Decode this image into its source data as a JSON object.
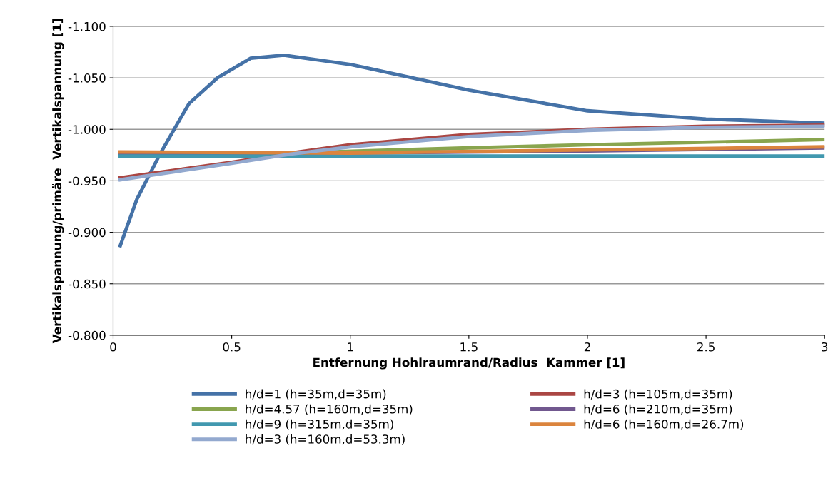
{
  "chart_data": {
    "type": "line",
    "xlabel": "Entfernung Hohlraumrand/Radius  Kammer [1]",
    "ylabel": "Vertikalspannung/primäre  Vertikalspannung [1]",
    "xlim": [
      0,
      3
    ],
    "xticks": [
      0,
      0.5,
      1,
      1.5,
      2,
      2.5,
      3
    ],
    "ylim": [
      -0.8,
      -1.1
    ],
    "yticks": [
      {
        "value": -1.1,
        "label": "-1.100"
      },
      {
        "value": -1.05,
        "label": "-1.050"
      },
      {
        "value": -1.0,
        "label": "-1.000"
      },
      {
        "value": -0.95,
        "label": "-0.950"
      },
      {
        "value": -0.9,
        "label": "-0.900"
      },
      {
        "value": -0.85,
        "label": "-0.850"
      },
      {
        "value": -0.8,
        "label": "-0.800"
      }
    ],
    "grid": "y",
    "legend": "bottom",
    "marker": "none",
    "line_style": "solid",
    "series": [
      {
        "name": "h/d=1 (h=35m,d=35m)",
        "color": "#4572a7",
        "x": [
          0.03,
          0.1,
          0.2,
          0.32,
          0.44,
          0.58,
          0.72,
          1.0,
          1.5,
          2.0,
          2.5,
          3.0
        ],
        "values": [
          -0.887,
          -0.932,
          -0.977,
          -1.025,
          -1.05,
          -1.069,
          -1.072,
          -1.063,
          -1.038,
          -1.018,
          -1.01,
          -1.006
        ]
      },
      {
        "name": "h/d=3 (h=105m,d=35m)",
        "color": "#aa4643",
        "x": [
          0.03,
          0.5,
          0.75,
          1.0,
          1.5,
          2.0,
          2.5,
          3.0
        ],
        "values": [
          -0.953,
          -0.968,
          -0.977,
          -0.985,
          -0.995,
          -1.0,
          -1.003,
          -1.004
        ]
      },
      {
        "name": "h/d=4.57 (h=160m,d=35m)",
        "color": "#89a54e",
        "x": [
          0.03,
          0.75,
          1.5,
          2.0,
          3.0
        ],
        "values": [
          -0.975,
          -0.977,
          -0.982,
          -0.985,
          -0.99
        ]
      },
      {
        "name": "h/d=6 (h=210m,d=35m)",
        "color": "#71588f",
        "x": [
          0.03,
          1.0,
          2.0,
          3.0
        ],
        "values": [
          -0.977,
          -0.977,
          -0.979,
          -0.982
        ]
      },
      {
        "name": "h/d=9 (h=315m,d=35m)",
        "color": "#4198af",
        "x": [
          0.03,
          1.5,
          3.0
        ],
        "values": [
          -0.974,
          -0.974,
          -0.974
        ]
      },
      {
        "name": "h/d=6 (h=160m,d=26.7m)",
        "color": "#db843d",
        "x": [
          0.03,
          1.0,
          2.0,
          3.0
        ],
        "values": [
          -0.978,
          -0.977,
          -0.98,
          -0.983
        ]
      },
      {
        "name": "h/d=3 (h=160m,d=53.3m)",
        "color": "#93a9cf",
        "x": [
          0.03,
          0.5,
          0.75,
          1.0,
          1.5,
          2.0,
          2.5,
          3.0
        ],
        "values": [
          -0.951,
          -0.967,
          -0.976,
          -0.983,
          -0.993,
          -0.999,
          -1.002,
          -1.003
        ]
      }
    ]
  }
}
